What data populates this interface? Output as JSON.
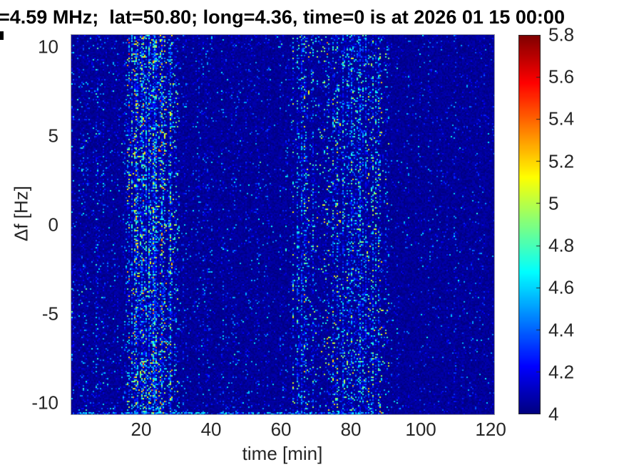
{
  "figure": {
    "title": "=4.59 MHz;  lat=50.80; long=4.36, time=0 is at 2026 01 15 00:00",
    "xlabel": "time [min]",
    "ylabel": "Δf [Hz]"
  },
  "colors": {
    "title_text": "#000000",
    "tick_labels": "#262626",
    "plot_background_low": "#00008f",
    "figure_background": "#ffffff",
    "colormap_top": "#800000"
  },
  "chart_data": {
    "type": "heatmap",
    "title": "=4.59 MHz;  lat=50.80; long=4.36, time=0 is at 2026 01 15 00:00",
    "xlabel": "time [min]",
    "ylabel": "Δf [Hz]",
    "xlim": [
      0,
      121
    ],
    "ylim": [
      -10.66,
      10.66
    ],
    "x_ticks": [
      20,
      40,
      60,
      80,
      100,
      120
    ],
    "y_ticks": [
      10,
      5,
      0,
      -5,
      -10
    ],
    "grid": false,
    "colormap": "jet",
    "clim": [
      4,
      5.8
    ],
    "colorbar_ticks": [
      4,
      4.2,
      4.4,
      4.6,
      4.8,
      5,
      5.2,
      5.4,
      5.6,
      5.8
    ],
    "colorbar_position": "right",
    "background_value": 4.0,
    "noise_seed": 1337,
    "activity_bands": [
      {
        "t_start": 0,
        "t_end": 16,
        "density": 0.1,
        "amplitude": 0.55
      },
      {
        "t_start": 16,
        "t_end": 31,
        "density": 0.44,
        "amplitude": 1.0
      },
      {
        "t_start": 31,
        "t_end": 63,
        "density": 0.055,
        "amplitude": 0.45
      },
      {
        "t_start": 63,
        "t_end": 70,
        "density": 0.26,
        "amplitude": 0.8
      },
      {
        "t_start": 70,
        "t_end": 91,
        "density": 0.3,
        "amplitude": 0.85
      },
      {
        "t_start": 91,
        "t_end": 121,
        "density": 0.045,
        "amplitude": 0.4
      }
    ],
    "bottom_edge_band": {
      "t_start": 0,
      "t_end": 85,
      "density": 0.5,
      "amplitude": 0.8
    }
  }
}
